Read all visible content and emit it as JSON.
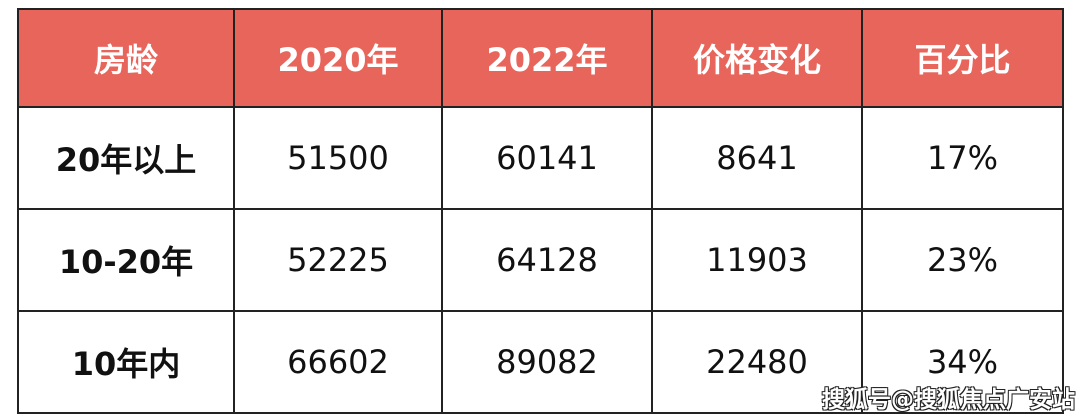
{
  "chart_data": {
    "type": "table",
    "columns": [
      "房龄",
      "2020年",
      "2022年",
      "价格变化",
      "百分比"
    ],
    "rows": [
      [
        "20年以上",
        "51500",
        "60141",
        "8641",
        "17%"
      ],
      [
        "10-20年",
        "52225",
        "64128",
        "11903",
        "23%"
      ],
      [
        "10年内",
        "66602",
        "89082",
        "22480",
        "34%"
      ]
    ],
    "header_color": "#e8655c"
  },
  "watermark": "搜狐号@搜狐焦点广安站"
}
